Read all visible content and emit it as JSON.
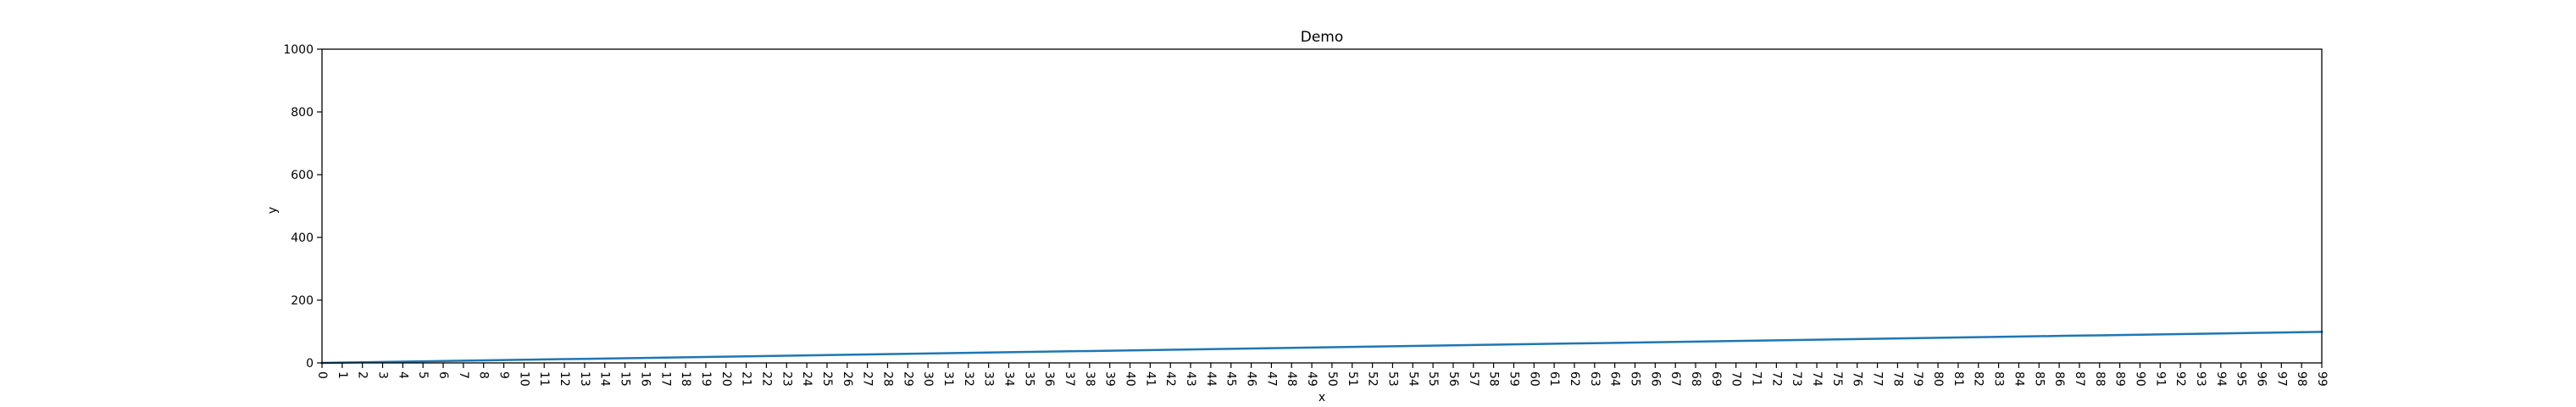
{
  "chart_data": {
    "type": "line",
    "title": "Demo",
    "xlabel": "x",
    "ylabel": "y",
    "xlim": [
      0,
      99
    ],
    "ylim": [
      0,
      1000
    ],
    "x_ticks": [
      0,
      1,
      2,
      3,
      4,
      5,
      6,
      7,
      8,
      9,
      10,
      11,
      12,
      13,
      14,
      15,
      16,
      17,
      18,
      19,
      20,
      21,
      22,
      23,
      24,
      25,
      26,
      27,
      28,
      29,
      30,
      31,
      32,
      33,
      34,
      35,
      36,
      37,
      38,
      39,
      40,
      41,
      42,
      43,
      44,
      45,
      46,
      47,
      48,
      49,
      50,
      51,
      52,
      53,
      54,
      55,
      56,
      57,
      58,
      59,
      60,
      61,
      62,
      63,
      64,
      65,
      66,
      67,
      68,
      69,
      70,
      71,
      72,
      73,
      74,
      75,
      76,
      77,
      78,
      79,
      80,
      81,
      82,
      83,
      84,
      85,
      86,
      87,
      88,
      89,
      90,
      91,
      92,
      93,
      94,
      95,
      96,
      97,
      98,
      99
    ],
    "y_ticks": [
      0,
      200,
      400,
      600,
      800,
      1000
    ],
    "grid": false,
    "series": [
      {
        "color": "#1f77b4",
        "x": [
          0,
          1,
          2,
          3,
          4,
          5,
          6,
          7,
          8,
          9,
          10,
          11,
          12,
          13,
          14,
          15,
          16,
          17,
          18,
          19,
          20,
          21,
          22,
          23,
          24,
          25,
          26,
          27,
          28,
          29,
          30,
          31,
          32,
          33,
          34,
          35,
          36,
          37,
          38,
          39,
          40,
          41,
          42,
          43,
          44,
          45,
          46,
          47,
          48,
          49,
          50,
          51,
          52,
          53,
          54,
          55,
          56,
          57,
          58,
          59,
          60,
          61,
          62,
          63,
          64,
          65,
          66,
          67,
          68,
          69,
          70,
          71,
          72,
          73,
          74,
          75,
          76,
          77,
          78,
          79,
          80,
          81,
          82,
          83,
          84,
          85,
          86,
          87,
          88,
          89,
          90,
          91,
          92,
          93,
          94,
          95,
          96,
          97,
          98,
          99
        ],
        "values": [
          0,
          1,
          2,
          3,
          4,
          5,
          6,
          7,
          8,
          9,
          10,
          11,
          12,
          13,
          14,
          15,
          16,
          17,
          18,
          19,
          20,
          21,
          22,
          23,
          24,
          25,
          26,
          27,
          28,
          29,
          30,
          31,
          32,
          33,
          34,
          35,
          36,
          37,
          38,
          39,
          40,
          41,
          42,
          43,
          44,
          45,
          46,
          47,
          48,
          49,
          50,
          51,
          52,
          53,
          54,
          55,
          56,
          57,
          58,
          59,
          60,
          61,
          62,
          63,
          64,
          65,
          66,
          67,
          68,
          69,
          70,
          71,
          72,
          73,
          74,
          75,
          76,
          77,
          78,
          79,
          80,
          81,
          82,
          83,
          84,
          85,
          86,
          87,
          88,
          89,
          90,
          91,
          92,
          93,
          94,
          95,
          96,
          97,
          98,
          99
        ]
      }
    ]
  }
}
